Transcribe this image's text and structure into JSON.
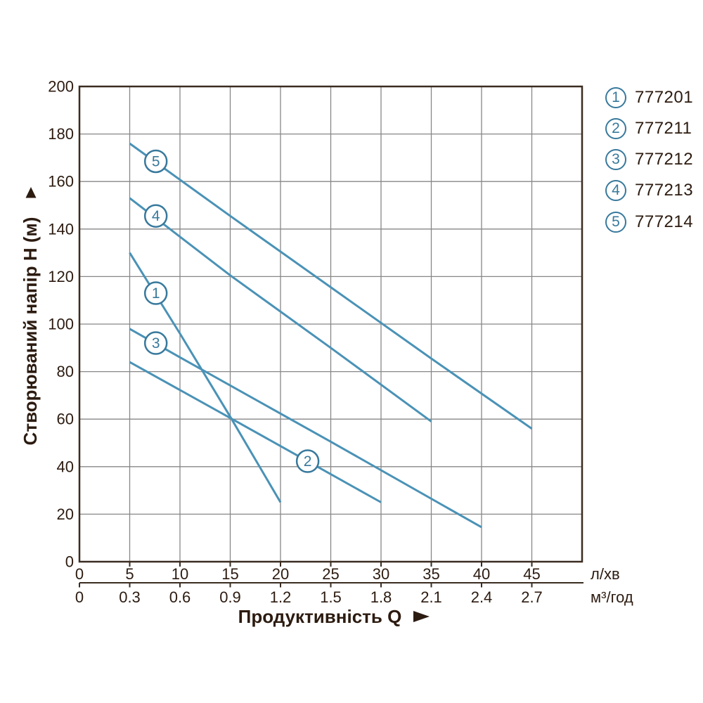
{
  "page": {
    "background": "#ffffff"
  },
  "colors": {
    "curve": "#4a92b6",
    "label_ring": "#38799c",
    "label_number": "#38799c",
    "grid": "#878787",
    "frame": "#3a2c20",
    "text_dark": "#2c1b10"
  },
  "y_axis": {
    "title": "Створюваний напір H (м)",
    "arrow_icon": "up-triangle",
    "tick_labels": [
      "0",
      "20",
      "40",
      "60",
      "80",
      "100",
      "120",
      "140",
      "160",
      "180",
      "200"
    ]
  },
  "x_axis": {
    "title": "Продуктивність  Q",
    "arrow_icon": "right-triangle",
    "primary_unit": "л/хв",
    "secondary_unit": "м³/год",
    "primary_ticks": [
      "0",
      "5",
      "10",
      "15",
      "20",
      "25",
      "30",
      "35",
      "40",
      "45"
    ],
    "secondary_ticks": [
      "0",
      "0.3",
      "0.6",
      "0.9",
      "1.2",
      "1.5",
      "1.8",
      "2.1",
      "2.4",
      "2.7"
    ]
  },
  "legend": {
    "items": [
      {
        "number": "1",
        "code": "777201"
      },
      {
        "number": "2",
        "code": "777211"
      },
      {
        "number": "3",
        "code": "777212"
      },
      {
        "number": "4",
        "code": "777213"
      },
      {
        "number": "5",
        "code": "777214"
      }
    ]
  },
  "chart_data": {
    "type": "line",
    "title": "",
    "xlabel": "Продуктивність Q",
    "ylabel": "Створюваний напір H (м)",
    "x_units": [
      "л/хв",
      "м³/год"
    ],
    "unit_relation": "0.3 м³/год = 5 л/хв",
    "xlim_lmin": [
      0,
      50
    ],
    "ylim_m": [
      0,
      200
    ],
    "x_gridline_step_lmin": 5,
    "y_gridline_step_m": 20,
    "grid": true,
    "legend_position": "outside-top-right",
    "series": [
      {
        "number": "1",
        "code": "777201",
        "points_q_lmin_h_m": [
          [
            5,
            130
          ],
          [
            10,
            96
          ],
          [
            15,
            61
          ],
          [
            20,
            25
          ]
        ],
        "label_at_q_h": [
          7.6,
          113
        ]
      },
      {
        "number": "2",
        "code": "777211",
        "points_q_lmin_h_m": [
          [
            5,
            84
          ],
          [
            15,
            60.5
          ],
          [
            30,
            25
          ]
        ],
        "label_at_q_h": [
          22.7,
          42.3
        ]
      },
      {
        "number": "3",
        "code": "777212",
        "points_q_lmin_h_m": [
          [
            5,
            98
          ],
          [
            10,
            86
          ],
          [
            25,
            50.5
          ],
          [
            40,
            14.5
          ]
        ],
        "label_at_q_h": [
          7.6,
          92
        ]
      },
      {
        "number": "4",
        "code": "777213",
        "points_q_lmin_h_m": [
          [
            5,
            153
          ],
          [
            15,
            120.5
          ],
          [
            25,
            90
          ],
          [
            35,
            59
          ]
        ],
        "label_at_q_h": [
          7.6,
          145.5
        ]
      },
      {
        "number": "5",
        "code": "777214",
        "points_q_lmin_h_m": [
          [
            5,
            176
          ],
          [
            15,
            145.5
          ],
          [
            25,
            115.5
          ],
          [
            35,
            85.5
          ],
          [
            45,
            56
          ]
        ],
        "label_at_q_h": [
          7.6,
          168.5
        ]
      }
    ]
  }
}
